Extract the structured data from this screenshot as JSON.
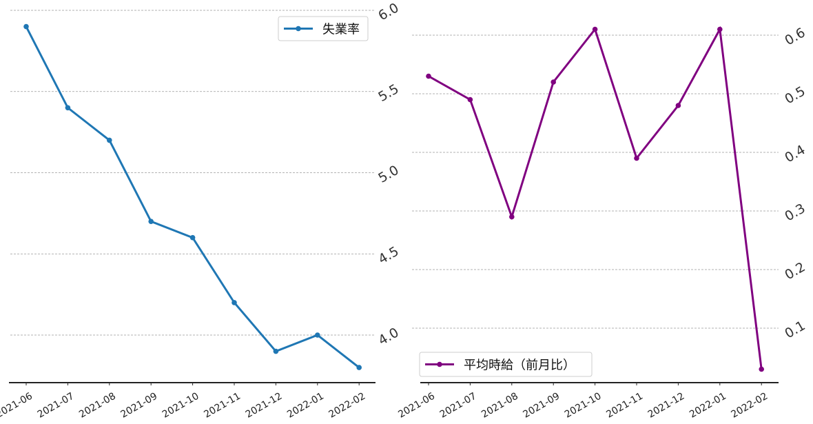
{
  "chart_data": [
    {
      "type": "line",
      "categories": [
        "2021-06",
        "2021-07",
        "2021-08",
        "2021-09",
        "2021-10",
        "2021-11",
        "2021-12",
        "2022-01",
        "2022-02"
      ],
      "series": [
        {
          "name": "失業率",
          "values": [
            5.9,
            5.4,
            5.2,
            4.7,
            4.6,
            4.2,
            3.9,
            4.0,
            3.8
          ],
          "color": "#1f77b4"
        }
      ],
      "yticks": [
        "4.0",
        "4.5",
        "5.0",
        "5.5",
        "6.0"
      ],
      "ylim": [
        3.8,
        6.0
      ],
      "y_axis_position": "right",
      "grid": "horizontal dashed",
      "legend_position": "top-right"
    },
    {
      "type": "line",
      "categories": [
        "2021-06",
        "2021-07",
        "2021-08",
        "2021-09",
        "2021-10",
        "2021-11",
        "2021-12",
        "2022-01",
        "2022-02"
      ],
      "series": [
        {
          "name": "平均時給（前月比）",
          "values": [
            0.53,
            0.49,
            0.29,
            0.52,
            0.61,
            0.39,
            0.48,
            0.61,
            0.03
          ],
          "color": "#800080"
        }
      ],
      "yticks": [
        "0.1",
        "0.2",
        "0.3",
        "0.4",
        "0.5",
        "0.6"
      ],
      "ylim": [
        0.03,
        0.65
      ],
      "y_axis_position": "right",
      "grid": "horizontal dashed",
      "legend_position": "bottom-left"
    }
  ]
}
